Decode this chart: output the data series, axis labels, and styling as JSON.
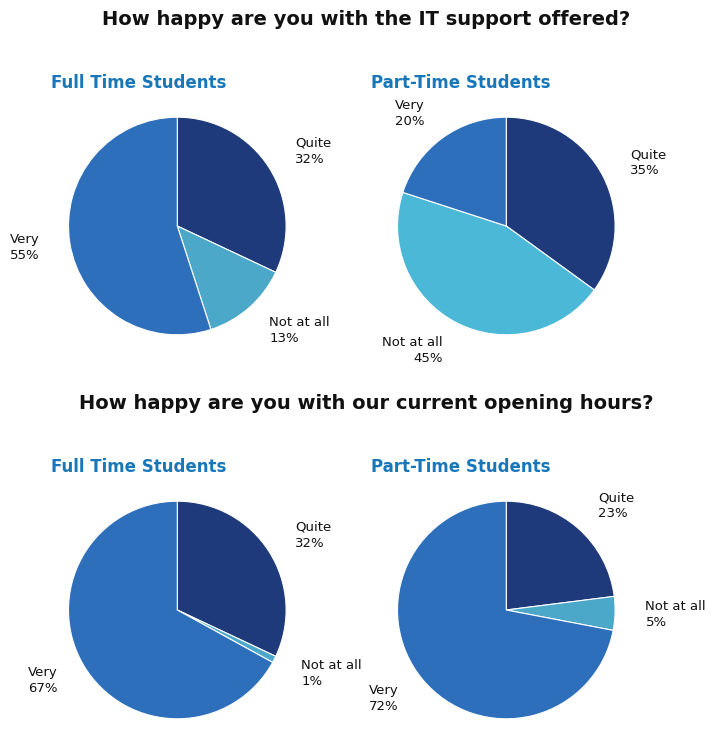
{
  "title1": "How happy are you with the IT support offered?",
  "title2": "How happy are you with our current opening hours?",
  "subtitle_full": "Full Time Students",
  "subtitle_part": "Part-Time Students",
  "subtitle_color": "#1777b8",
  "title_fontsize": 14,
  "subtitle_fontsize": 12,
  "label_fontsize": 9.5,
  "it_full_sizes": [
    32,
    13,
    55
  ],
  "it_full_labels": [
    "Quite\n32%",
    "Not at all\n13%",
    "Very\n55%"
  ],
  "it_full_colors": [
    "#1e3a7a",
    "#4ba8c8",
    "#2e6fbc"
  ],
  "it_full_startangle": 90,
  "it_part_sizes": [
    35,
    45,
    20
  ],
  "it_part_labels": [
    "Quite\n35%",
    "Not at all\n45%",
    "Very\n20%"
  ],
  "it_part_colors": [
    "#1e3a7a",
    "#4bb8d8",
    "#2e6fbc"
  ],
  "it_part_startangle": 90,
  "oh_full_sizes": [
    32,
    1,
    67
  ],
  "oh_full_labels": [
    "Quite\n32%",
    "Not at all\n1%",
    "Very\n67%"
  ],
  "oh_full_colors": [
    "#1e3a7a",
    "#4ba8c8",
    "#2e6fbc"
  ],
  "oh_full_startangle": 90,
  "oh_part_sizes": [
    23,
    5,
    72
  ],
  "oh_part_labels": [
    "Quite\n23%",
    "Not at all\n5%",
    "Very\n72%"
  ],
  "oh_part_colors": [
    "#1e3a7a",
    "#4ba8c8",
    "#2e6fbc"
  ],
  "oh_part_startangle": 90,
  "background_color": "#ffffff"
}
